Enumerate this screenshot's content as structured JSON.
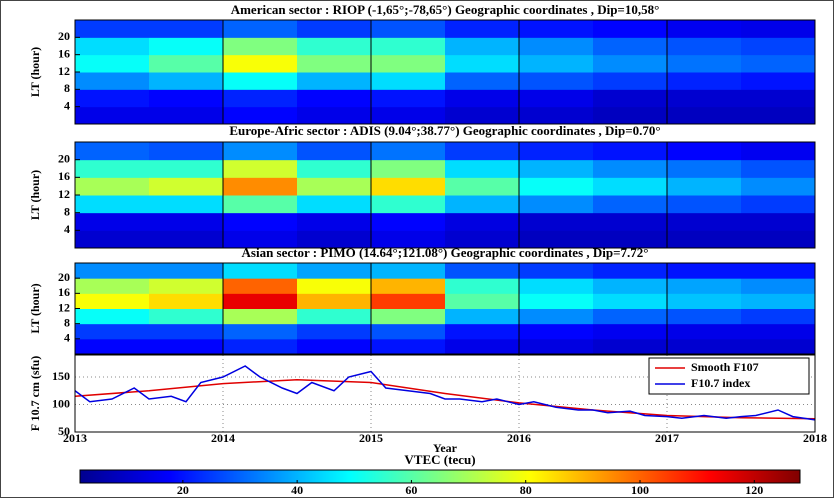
{
  "chart_data": [
    {
      "type": "heatmap",
      "title": "American sector : RIOP (-1,65°;-78,65°) Geographic coordinates , Dip=10,58°",
      "ylabel": "LT (hour)",
      "xlim": [
        2013,
        2018
      ],
      "xticks": [
        2013,
        2014,
        2015,
        2016,
        2017,
        2018
      ],
      "ylim": [
        0,
        24
      ],
      "yticks": [
        4,
        8,
        12,
        16,
        20
      ],
      "x_bins": [
        2013,
        2013.5,
        2014,
        2014.5,
        2015,
        2015.5,
        2016,
        2016.5,
        2017,
        2017.5,
        2018
      ],
      "lt_bins": [
        0,
        4,
        8,
        12,
        16,
        20,
        24
      ],
      "z": [
        [
          15,
          20,
          35,
          50,
          45,
          25
        ],
        [
          15,
          18,
          40,
          60,
          50,
          25
        ],
        [
          18,
          22,
          50,
          80,
          65,
          30
        ],
        [
          15,
          18,
          40,
          65,
          55,
          25
        ],
        [
          15,
          20,
          45,
          65,
          55,
          28
        ],
        [
          12,
          15,
          30,
          45,
          40,
          22
        ],
        [
          12,
          15,
          28,
          40,
          35,
          20
        ],
        [
          10,
          12,
          25,
          35,
          30,
          18
        ],
        [
          10,
          12,
          22,
          32,
          28,
          16
        ],
        [
          10,
          12,
          20,
          30,
          26,
          15
        ]
      ]
    },
    {
      "type": "heatmap",
      "title": "Europe-Afric sector : ADIS (9.04°;38.77°) Geographic coordinates , Dip=0.70°",
      "ylabel": "LT (hour)",
      "xlim": [
        2013,
        2018
      ],
      "xticks": [
        2013,
        2014,
        2015,
        2016,
        2017,
        2018
      ],
      "ylim": [
        0,
        24
      ],
      "yticks": [
        4,
        8,
        12,
        16,
        20
      ],
      "x_bins": [
        2013,
        2013.5,
        2014,
        2014.5,
        2015,
        2015.5,
        2016,
        2016.5,
        2017,
        2017.5,
        2018
      ],
      "lt_bins": [
        0,
        4,
        8,
        12,
        16,
        20,
        24
      ],
      "z": [
        [
          12,
          15,
          45,
          70,
          55,
          30
        ],
        [
          12,
          15,
          45,
          75,
          55,
          28
        ],
        [
          15,
          18,
          60,
          95,
          75,
          35
        ],
        [
          12,
          15,
          45,
          70,
          55,
          28
        ],
        [
          15,
          18,
          55,
          85,
          65,
          32
        ],
        [
          12,
          14,
          40,
          60,
          45,
          25
        ],
        [
          10,
          12,
          35,
          50,
          40,
          22
        ],
        [
          10,
          12,
          30,
          45,
          35,
          20
        ],
        [
          10,
          12,
          28,
          40,
          32,
          18
        ],
        [
          10,
          12,
          25,
          35,
          28,
          16
        ]
      ]
    },
    {
      "type": "heatmap",
      "title": "Asian sector : PIMO (14.64°;121.08°) Geographic coordinates , Dip=7.72°",
      "ylabel": "LT (hour)",
      "xlim": [
        2013,
        2018
      ],
      "xticks": [
        2013,
        2014,
        2015,
        2016,
        2017,
        2018
      ],
      "ylim": [
        0,
        24
      ],
      "yticks": [
        4,
        8,
        12,
        16,
        20
      ],
      "x_bins": [
        2013,
        2013.5,
        2014,
        2014.5,
        2015,
        2015.5,
        2016,
        2016.5,
        2017,
        2017.5,
        2018
      ],
      "lt_bins": [
        0,
        4,
        8,
        12,
        16,
        20,
        24
      ],
      "z": [
        [
          18,
          25,
          50,
          80,
          70,
          35
        ],
        [
          18,
          25,
          55,
          85,
          75,
          35
        ],
        [
          22,
          30,
          70,
          115,
          100,
          45
        ],
        [
          18,
          25,
          55,
          90,
          80,
          38
        ],
        [
          20,
          28,
          65,
          105,
          90,
          40
        ],
        [
          15,
          20,
          40,
          60,
          55,
          28
        ],
        [
          14,
          18,
          35,
          50,
          45,
          25
        ],
        [
          12,
          16,
          30,
          45,
          40,
          22
        ],
        [
          12,
          15,
          28,
          42,
          38,
          20
        ],
        [
          12,
          15,
          25,
          40,
          35,
          20
        ]
      ]
    },
    {
      "type": "line",
      "xlabel": "Year",
      "ylabel": "F 10.7 cm (sfu)",
      "xlim": [
        2013,
        2018
      ],
      "xticks": [
        2013,
        2014,
        2015,
        2016,
        2017,
        2018
      ],
      "ylim": [
        50,
        190
      ],
      "yticks": [
        50,
        100,
        150
      ],
      "grid": true,
      "legend": "upper right",
      "series": [
        {
          "name": "Smooth F107",
          "color": "#e00000",
          "x": [
            2013,
            2013.5,
            2014,
            2014.5,
            2015,
            2015.5,
            2016,
            2016.5,
            2017,
            2017.5,
            2018
          ],
          "values": [
            115,
            125,
            138,
            145,
            140,
            120,
            103,
            90,
            80,
            76,
            74
          ]
        },
        {
          "name": "F10.7 index",
          "color": "#0000e0",
          "x": [
            2013,
            2013.1,
            2013.25,
            2013.4,
            2013.5,
            2013.65,
            2013.75,
            2013.85,
            2014,
            2014.15,
            2014.25,
            2014.4,
            2014.5,
            2014.6,
            2014.75,
            2014.85,
            2015,
            2015.1,
            2015.25,
            2015.4,
            2015.5,
            2015.6,
            2015.75,
            2015.85,
            2016,
            2016.1,
            2016.25,
            2016.4,
            2016.5,
            2016.6,
            2016.75,
            2016.85,
            2017,
            2017.1,
            2017.25,
            2017.4,
            2017.5,
            2017.6,
            2017.75,
            2017.85,
            2018
          ],
          "values": [
            125,
            105,
            110,
            130,
            110,
            115,
            105,
            140,
            150,
            170,
            150,
            130,
            120,
            140,
            125,
            150,
            160,
            130,
            125,
            120,
            110,
            110,
            105,
            110,
            100,
            105,
            95,
            90,
            90,
            85,
            88,
            80,
            78,
            75,
            80,
            75,
            78,
            80,
            90,
            78,
            72
          ]
        }
      ]
    },
    {
      "type": "colorbar",
      "title": "VTEC (tecu)",
      "clim": [
        2,
        128
      ],
      "ticks": [
        20,
        40,
        60,
        80,
        100,
        120
      ]
    }
  ]
}
